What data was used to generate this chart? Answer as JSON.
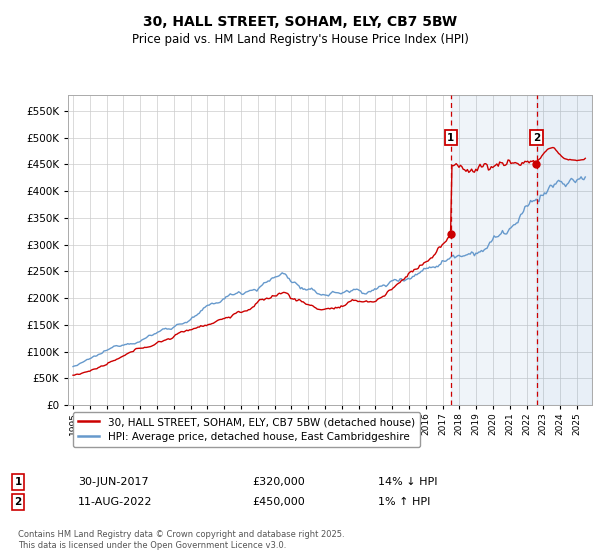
{
  "title": "30, HALL STREET, SOHAM, ELY, CB7 5BW",
  "subtitle": "Price paid vs. HM Land Registry's House Price Index (HPI)",
  "background_color": "#ffffff",
  "grid_color": "#cccccc",
  "sale1_date": "30-JUN-2017",
  "sale1_price": 320000,
  "sale1_label": "14% ↓ HPI",
  "sale2_date": "11-AUG-2022",
  "sale2_price": 450000,
  "sale2_label": "1% ↑ HPI",
  "legend_label_red": "30, HALL STREET, SOHAM, ELY, CB7 5BW (detached house)",
  "legend_label_blue": "HPI: Average price, detached house, East Cambridgeshire",
  "footer": "Contains HM Land Registry data © Crown copyright and database right 2025.\nThis data is licensed under the Open Government Licence v3.0.",
  "red_color": "#cc0000",
  "blue_color": "#6699cc",
  "shade_color": "#ddeeff",
  "dashed_color": "#cc0000",
  "annotation_box_color": "#cc0000",
  "ylim": [
    0,
    580000
  ],
  "yticks": [
    0,
    50000,
    100000,
    150000,
    200000,
    250000,
    300000,
    350000,
    400000,
    450000,
    500000,
    550000
  ],
  "sale1_x": 2017.5,
  "sale2_x": 2022.6,
  "xmin": 1994.7,
  "xmax": 2025.9
}
